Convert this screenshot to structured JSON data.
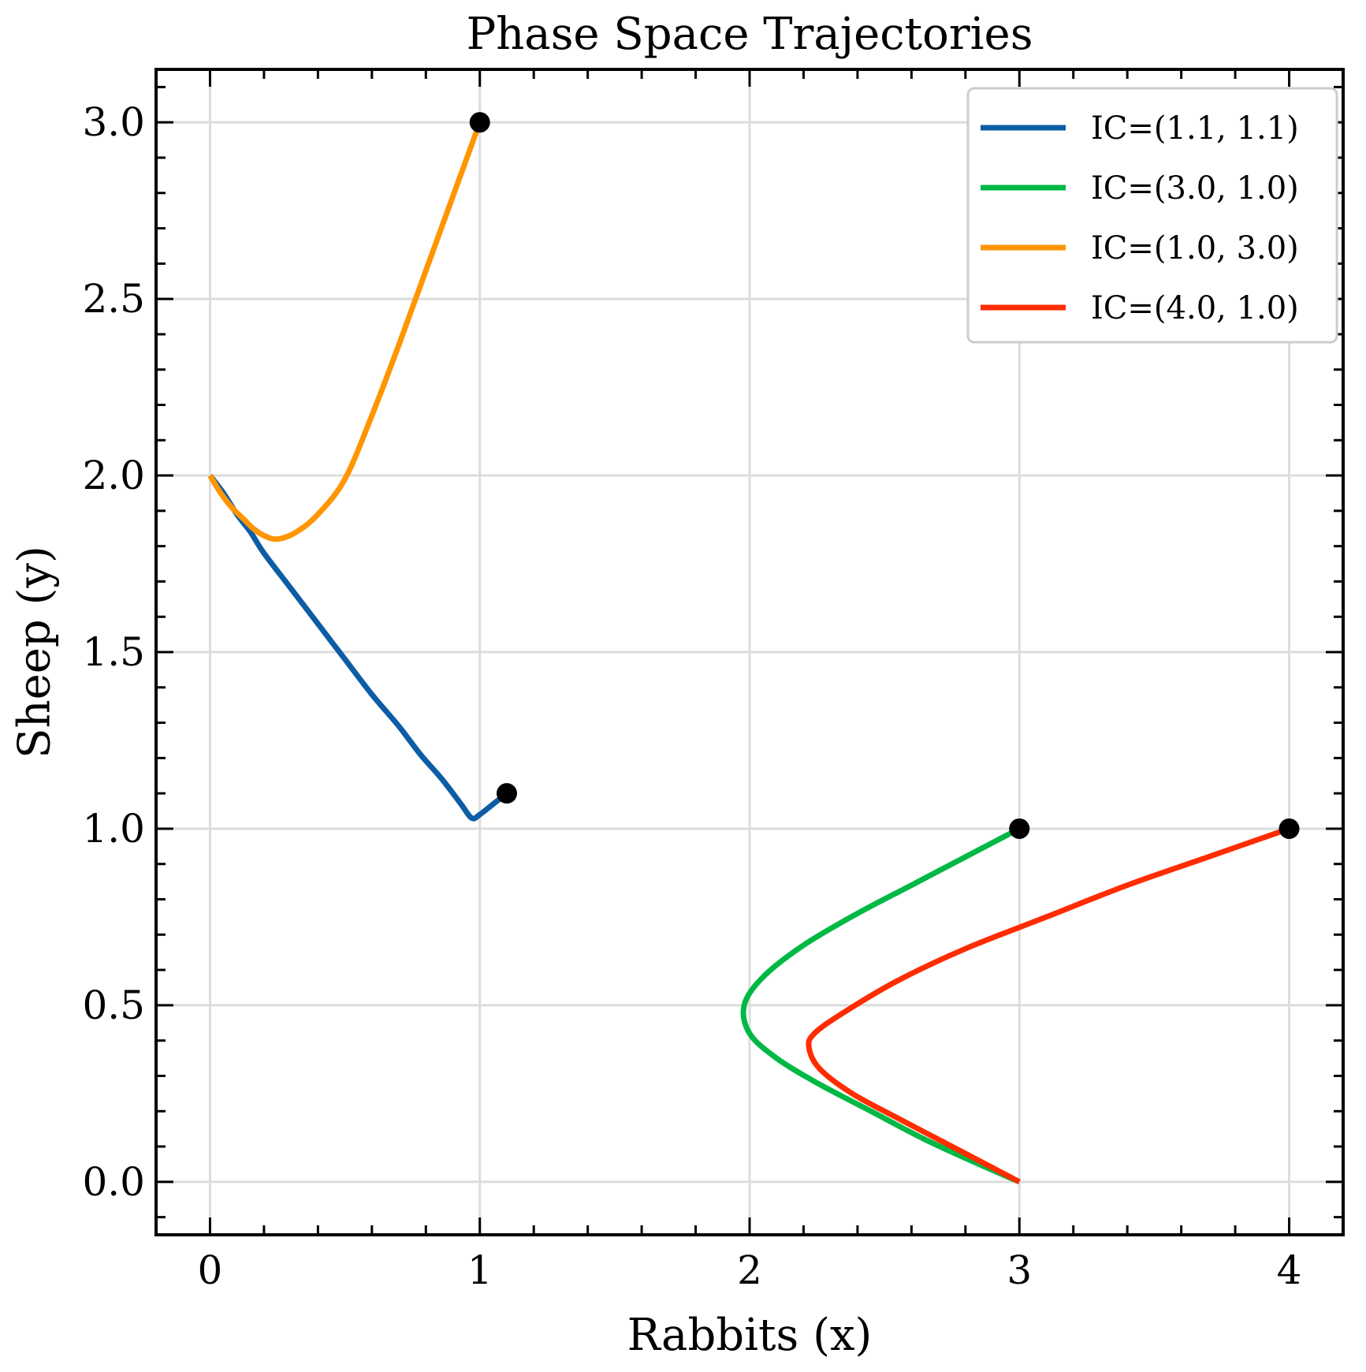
{
  "chart_data": {
    "type": "line",
    "title": "Phase Space Trajectories",
    "xlabel": "Rabbits (x)",
    "ylabel": "Sheep (y)",
    "xlim": [
      -0.2,
      4.2
    ],
    "ylim": [
      -0.15,
      3.15
    ],
    "xticks": [
      0,
      1,
      2,
      3,
      4
    ],
    "xtick_labels": [
      "0",
      "1",
      "2",
      "3",
      "4"
    ],
    "yticks": [
      0.0,
      0.5,
      1.0,
      1.5,
      2.0,
      2.5,
      3.0
    ],
    "ytick_labels": [
      "0.0",
      "0.5",
      "1.0",
      "1.5",
      "2.0",
      "2.5",
      "3.0"
    ],
    "x_minor_step": 0.2,
    "y_minor_step": 0.1,
    "grid": true,
    "legend_position": "top-right",
    "start_marker_color": "#000000",
    "series": [
      {
        "name": "IC=(1.1, 1.1)",
        "color": "#0c5da5",
        "x": [
          1.1,
          1.05,
          1.0,
          0.97,
          0.93,
          0.86,
          0.78,
          0.7,
          0.6,
          0.5,
          0.4,
          0.3,
          0.2,
          0.15,
          0.1,
          0.05,
          0.0
        ],
        "y": [
          1.1,
          1.07,
          1.04,
          1.03,
          1.07,
          1.14,
          1.21,
          1.29,
          1.38,
          1.48,
          1.58,
          1.68,
          1.78,
          1.84,
          1.89,
          1.95,
          2.0
        ]
      },
      {
        "name": "IC=(3.0, 1.0)",
        "color": "#00b945",
        "x": [
          3.0,
          2.8,
          2.6,
          2.4,
          2.2,
          2.05,
          1.98,
          2.0,
          2.1,
          2.25,
          2.45,
          2.65,
          2.85,
          3.0
        ],
        "y": [
          1.0,
          0.92,
          0.84,
          0.76,
          0.67,
          0.58,
          0.5,
          0.42,
          0.35,
          0.28,
          0.2,
          0.12,
          0.05,
          0.0
        ]
      },
      {
        "name": "IC=(1.0, 3.0)",
        "color": "#ff9500",
        "x": [
          1.0,
          0.9,
          0.8,
          0.7,
          0.6,
          0.5,
          0.4,
          0.32,
          0.25,
          0.2,
          0.16,
          0.12,
          0.08,
          0.04,
          0.0
        ],
        "y": [
          3.0,
          2.79,
          2.58,
          2.37,
          2.17,
          1.99,
          1.89,
          1.84,
          1.82,
          1.83,
          1.85,
          1.88,
          1.91,
          1.95,
          2.0
        ]
      },
      {
        "name": "IC=(4.0, 1.0)",
        "color": "#ff2c00",
        "x": [
          4.0,
          3.7,
          3.4,
          3.1,
          2.8,
          2.55,
          2.35,
          2.24,
          2.22,
          2.26,
          2.38,
          2.55,
          2.75,
          2.9,
          3.0
        ],
        "y": [
          1.0,
          0.92,
          0.84,
          0.75,
          0.66,
          0.57,
          0.48,
          0.42,
          0.38,
          0.32,
          0.25,
          0.18,
          0.1,
          0.04,
          0.0
        ]
      }
    ]
  }
}
